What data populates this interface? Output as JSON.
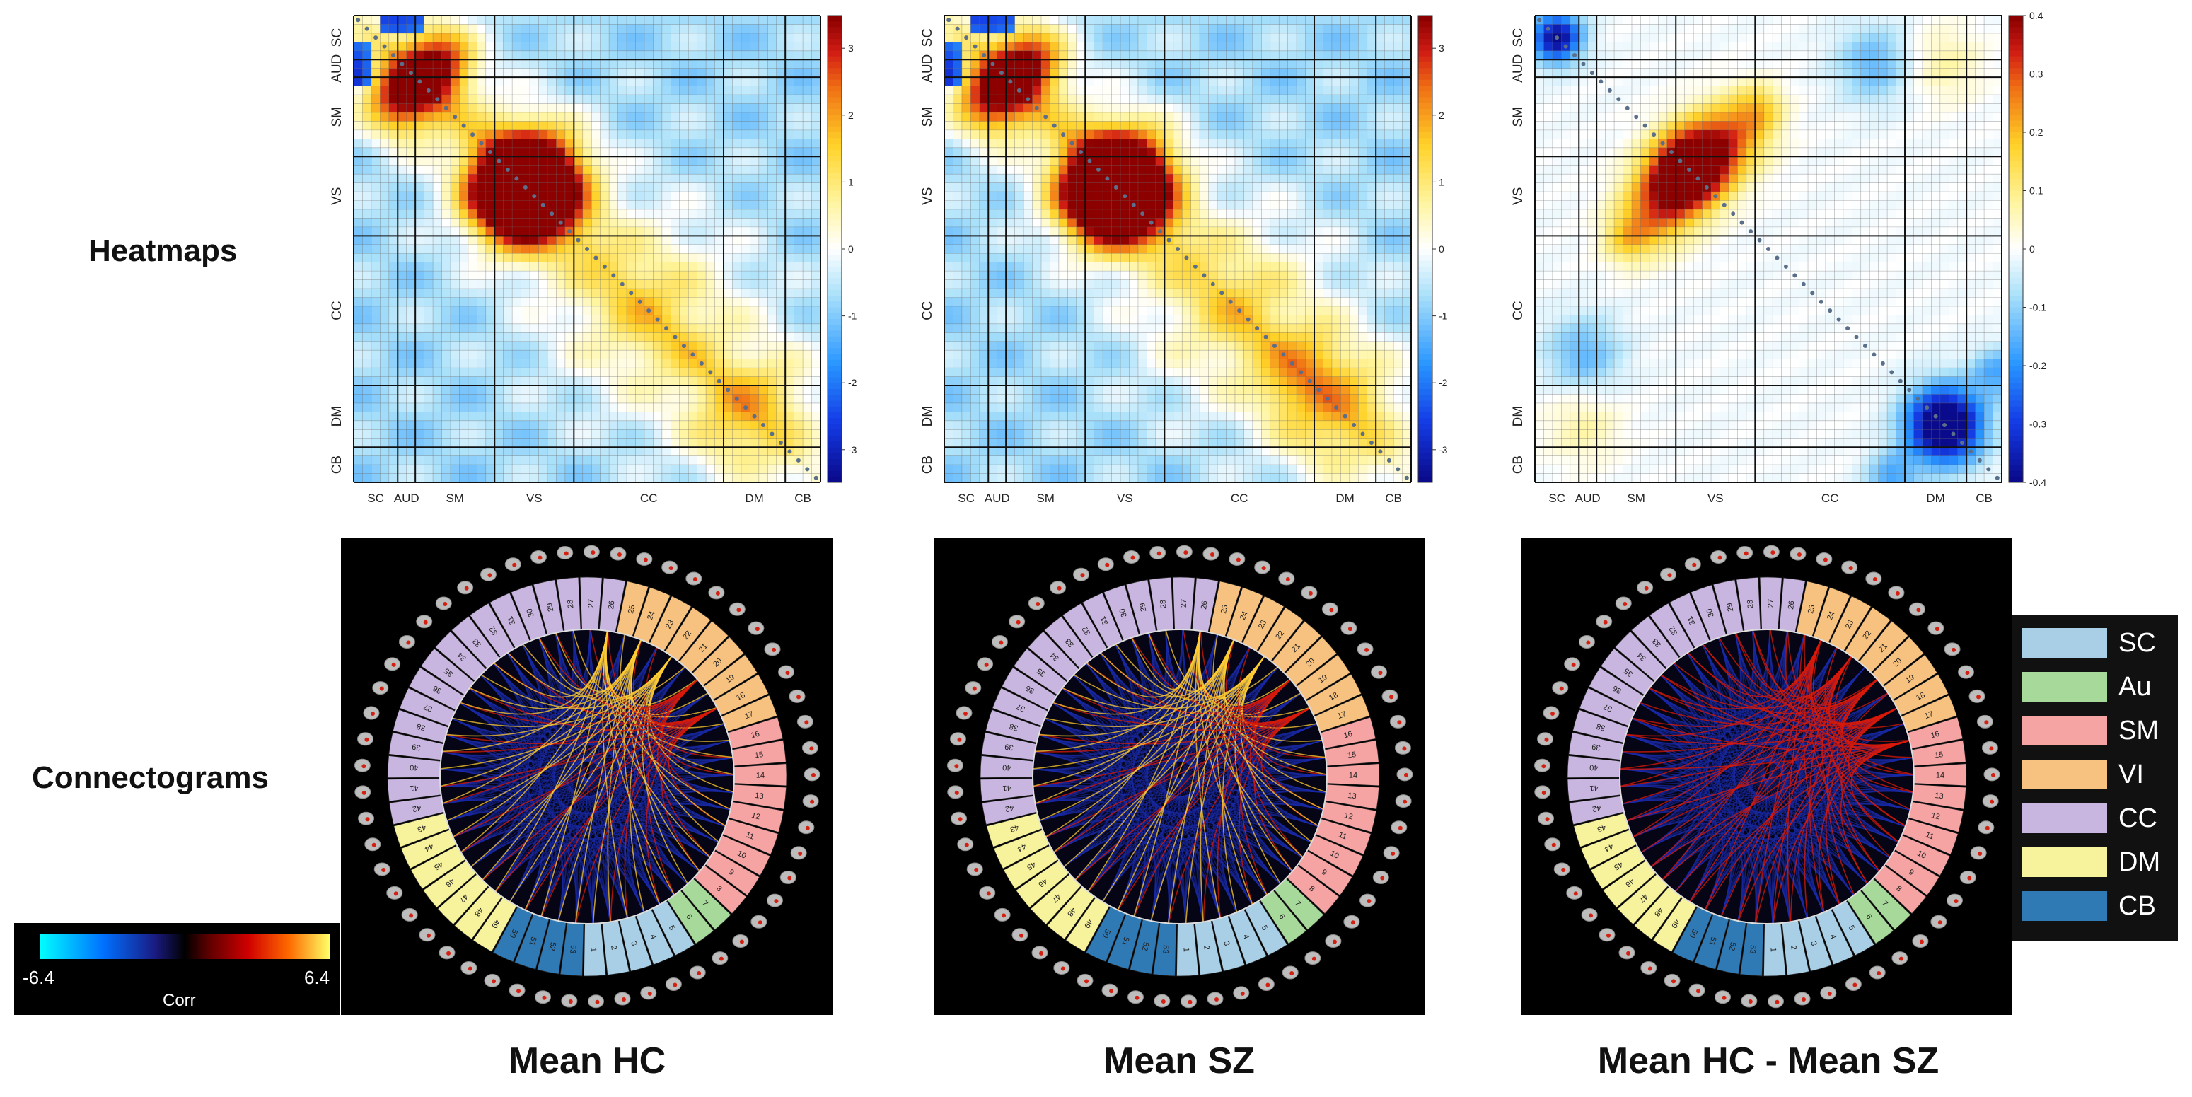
{
  "row_labels": {
    "heatmaps": "Heatmaps",
    "connectograms": "Connectograms"
  },
  "column_titles": [
    "Mean HC",
    "Mean SZ",
    "Mean HC - Mean SZ"
  ],
  "domain_labels": [
    "SC",
    "AUD",
    "SM",
    "VS",
    "CC",
    "DM",
    "CB"
  ],
  "heatmap_colorbars": [
    {
      "ticks": [
        "3",
        "2",
        "1",
        "0",
        "-1",
        "-2",
        "-3"
      ]
    },
    {
      "ticks": [
        "3",
        "2",
        "1",
        "0",
        "-1",
        "-2",
        "-3"
      ]
    },
    {
      "ticks": [
        "0.4",
        "0.3",
        "0.2",
        "0.1",
        "0",
        "-0.1",
        "-0.2",
        "-0.3",
        "-0.4"
      ]
    }
  ],
  "connectogram_colorbar": {
    "min_label": "-6.4",
    "max_label": "6.4",
    "title": "Corr"
  },
  "legend": [
    {
      "label": "SC",
      "color": "#a9cfe6"
    },
    {
      "label": "Au",
      "color": "#a6d99a"
    },
    {
      "label": "SM",
      "color": "#f5a3a3"
    },
    {
      "label": "VI",
      "color": "#f7c27f"
    },
    {
      "label": "CC",
      "color": "#c9b6e0"
    },
    {
      "label": "DM",
      "color": "#f7f29c"
    },
    {
      "label": "CB",
      "color": "#2f79b5"
    }
  ],
  "ring_segments": [
    {
      "domain": "SC",
      "labels": [
        "1",
        "2",
        "3",
        "4",
        "5"
      ]
    },
    {
      "domain": "Au",
      "labels": [
        "6",
        "7"
      ]
    },
    {
      "domain": "SM",
      "labels": [
        "8",
        "9",
        "10",
        "11",
        "12",
        "13",
        "14",
        "15",
        "16"
      ]
    },
    {
      "domain": "VI",
      "labels": [
        "17",
        "18",
        "19",
        "20",
        "21",
        "22",
        "23",
        "24",
        "25"
      ]
    },
    {
      "domain": "CC",
      "labels": [
        "26",
        "27",
        "28",
        "29",
        "30",
        "31",
        "32",
        "33",
        "34",
        "35",
        "36",
        "37",
        "38",
        "39",
        "40",
        "41",
        "42"
      ]
    },
    {
      "domain": "DM",
      "labels": [
        "43",
        "44",
        "45",
        "46",
        "47",
        "48",
        "49"
      ]
    },
    {
      "domain": "CB",
      "labels": [
        "50",
        "51",
        "52",
        "53"
      ]
    }
  ]
}
